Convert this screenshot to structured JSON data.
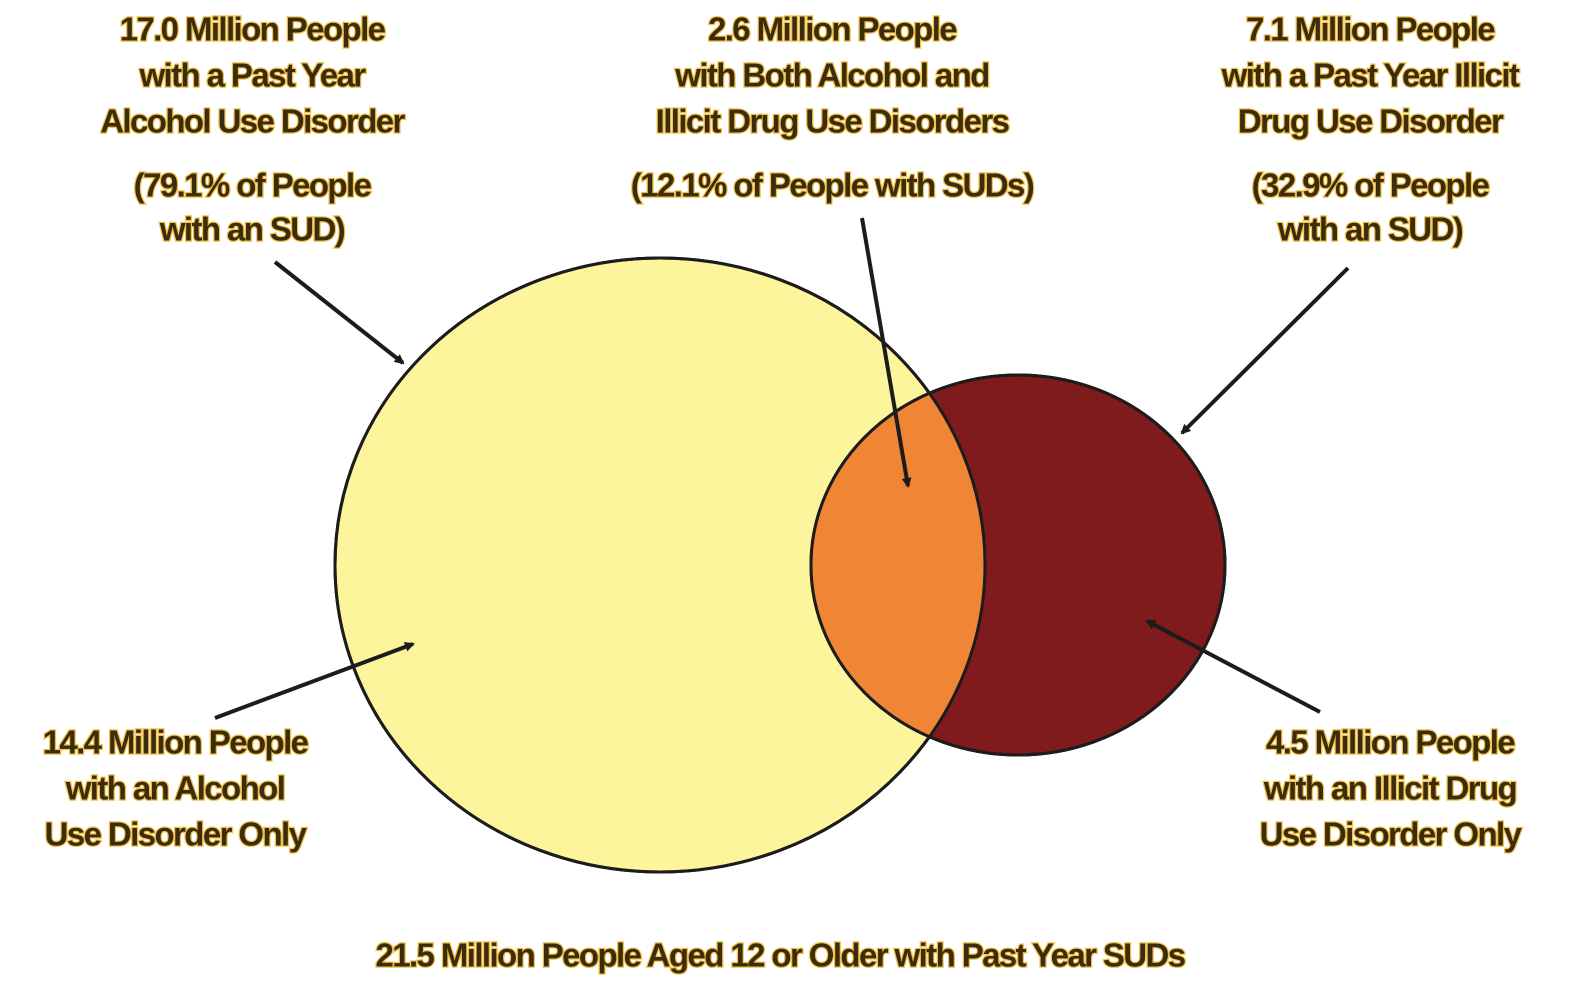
{
  "labels": [
    {
      "lines": [
        "17.0 Million People",
        "with a Past Year",
        "Alcohol Use Disorder"
      ],
      "share": [
        "(79.1% of People",
        "with an SUD)"
      ]
    },
    {
      "lines": [
        "2.6 Million People",
        "with Both Alcohol and",
        "Illicit Drug Use Disorders"
      ],
      "share": [
        "(12.1% of People with SUDs)"
      ]
    },
    {
      "lines": [
        "7.1 Million People",
        "with a Past Year Illicit",
        "Drug Use Disorder"
      ],
      "share": [
        "(32.9% of People",
        "with an SUD)"
      ]
    },
    {
      "lines": [
        "14.4 Million People",
        "with an Alcohol",
        "Use Disorder Only"
      ]
    },
    {
      "lines": [
        "4.5 Million People",
        "with an Illicit Drug",
        "Use Disorder Only"
      ]
    }
  ],
  "footer": "21.5 Million People Aged 12 or Older with Past Year SUDs"
}
